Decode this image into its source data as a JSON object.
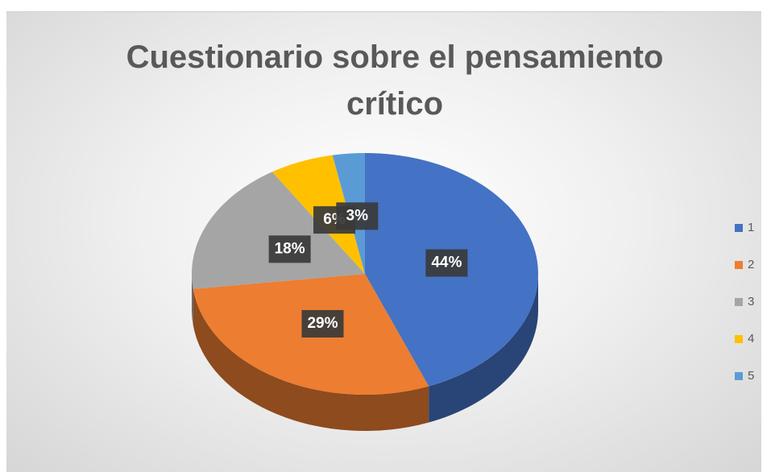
{
  "chart_data": {
    "type": "pie",
    "title": "Cuestionario sobre el pensamiento crítico",
    "categories": [
      "1",
      "2",
      "3",
      "4",
      "5"
    ],
    "values": [
      44,
      29,
      18,
      6,
      3
    ],
    "value_labels": [
      "44%",
      "29%",
      "18%",
      "6%",
      "3%"
    ],
    "colors": [
      "#4472c4",
      "#ed7d31",
      "#a5a5a5",
      "#ffc000",
      "#5b9bd5"
    ],
    "legend": "right"
  }
}
